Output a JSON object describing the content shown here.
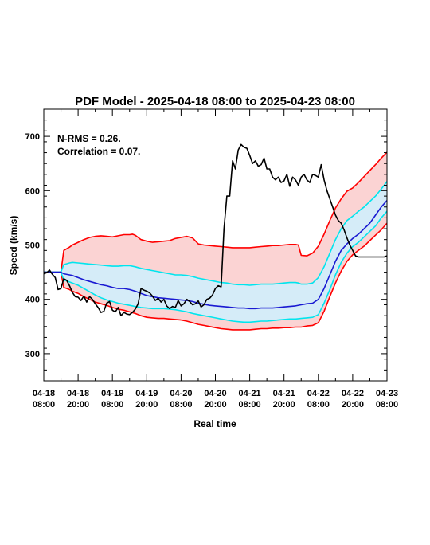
{
  "chart_data": {
    "type": "line",
    "title": "PDF Model - 2025-04-18 08:00 to 2025-04-23 08:00",
    "xlabel": "Real time",
    "ylabel": "Speed (km/s)",
    "ylim": [
      250,
      750
    ],
    "xlim": [
      0,
      120
    ],
    "yticks": [
      300,
      400,
      500,
      600,
      700
    ],
    "xticks": [
      {
        "x": 0,
        "date": "04-18",
        "time": "08:00"
      },
      {
        "x": 12,
        "date": "04-18",
        "time": "20:00"
      },
      {
        "x": 24,
        "date": "04-19",
        "time": "08:00"
      },
      {
        "x": 36,
        "date": "04-19",
        "time": "20:00"
      },
      {
        "x": 48,
        "date": "04-20",
        "time": "08:00"
      },
      {
        "x": 60,
        "date": "04-20",
        "time": "20:00"
      },
      {
        "x": 72,
        "date": "04-21",
        "time": "08:00"
      },
      {
        "x": 84,
        "date": "04-21",
        "time": "20:00"
      },
      {
        "x": 96,
        "date": "04-22",
        "time": "08:00"
      },
      {
        "x": 108,
        "date": "04-22",
        "time": "20:00"
      },
      {
        "x": 120,
        "date": "04-23",
        "time": "08:00"
      }
    ],
    "annotations": [
      "N-RMS = 0.26.",
      "Correlation = 0.07."
    ],
    "grid": false,
    "colors": {
      "outer_band": "#ff0000",
      "outer_fill": "#fbd3d3",
      "inner_band": "#00e5ee",
      "inner_fill": "#d5ecf8",
      "median": "#1a1ad2",
      "observed": "#000000"
    },
    "series": [
      {
        "role": "upper-outer",
        "x": [
          0,
          2,
          5,
          6,
          7,
          9,
          10,
          12,
          14,
          16,
          18,
          20,
          22,
          24,
          26,
          28,
          30,
          31,
          32,
          34,
          36,
          38,
          40,
          42,
          44,
          46,
          48,
          49,
          50,
          52,
          54,
          56,
          58,
          60,
          62,
          64,
          66,
          68,
          70,
          72,
          74,
          76,
          78,
          80,
          82,
          84,
          86,
          88,
          89,
          90,
          92,
          94,
          96,
          98,
          100,
          102,
          104,
          106,
          108,
          110,
          112,
          114,
          116,
          118,
          120
        ],
        "y": [
          450,
          450,
          450,
          450,
          490,
          496,
          500,
          505,
          510,
          514,
          516,
          517,
          516,
          515,
          517,
          519,
          519,
          520,
          518,
          510,
          507,
          505,
          506,
          507,
          508,
          512,
          514,
          515,
          516,
          513,
          502,
          500,
          499,
          498,
          497,
          496,
          495,
          495,
          495,
          495,
          496,
          497,
          498,
          499,
          499,
          500,
          501,
          501,
          500,
          481,
          480,
          485,
          498,
          520,
          545,
          568,
          585,
          599,
          605,
          615,
          626,
          637,
          648,
          660,
          671
        ]
      },
      {
        "role": "upper-inner",
        "x": [
          0,
          2,
          5,
          6,
          7,
          9,
          10,
          12,
          14,
          16,
          18,
          20,
          22,
          24,
          26,
          28,
          30,
          32,
          34,
          36,
          38,
          40,
          42,
          44,
          46,
          48,
          50,
          52,
          54,
          56,
          58,
          60,
          62,
          64,
          66,
          68,
          70,
          72,
          74,
          76,
          78,
          80,
          82,
          84,
          86,
          88,
          89,
          90,
          92,
          94,
          96,
          98,
          100,
          102,
          104,
          106,
          108,
          110,
          112,
          114,
          116,
          118,
          120
        ],
        "y": [
          450,
          450,
          450,
          450,
          464,
          467,
          468,
          467,
          466,
          465,
          464,
          463,
          462,
          461,
          461,
          462,
          462,
          460,
          457,
          455,
          453,
          451,
          449,
          447,
          445,
          445,
          444,
          442,
          439,
          437,
          435,
          433,
          431,
          430,
          428,
          427,
          427,
          426,
          427,
          428,
          428,
          428,
          429,
          430,
          431,
          431,
          430,
          428,
          428,
          430,
          440,
          460,
          485,
          510,
          530,
          545,
          553,
          562,
          570,
          580,
          590,
          603,
          617
        ]
      },
      {
        "role": "median",
        "x": [
          0,
          2,
          5,
          6,
          7,
          9,
          10,
          12,
          14,
          16,
          18,
          20,
          22,
          24,
          26,
          28,
          30,
          32,
          34,
          36,
          38,
          40,
          42,
          44,
          46,
          48,
          50,
          52,
          54,
          56,
          58,
          60,
          62,
          64,
          66,
          68,
          70,
          72,
          74,
          76,
          78,
          80,
          82,
          84,
          86,
          88,
          90,
          92,
          94,
          96,
          98,
          100,
          102,
          104,
          106,
          108,
          110,
          112,
          114,
          116,
          118,
          120
        ],
        "y": [
          450,
          450,
          450,
          450,
          447,
          445,
          444,
          440,
          436,
          433,
          430,
          427,
          425,
          422,
          420,
          420,
          418,
          415,
          411,
          407,
          405,
          403,
          402,
          401,
          400,
          399,
          398,
          396,
          393,
          391,
          389,
          388,
          387,
          386,
          385,
          384,
          384,
          383,
          383,
          384,
          384,
          384,
          385,
          386,
          387,
          388,
          390,
          392,
          393,
          400,
          420,
          445,
          470,
          490,
          502,
          512,
          520,
          530,
          540,
          555,
          570,
          582
        ]
      },
      {
        "role": "lower-inner",
        "x": [
          0,
          2,
          5,
          6,
          7,
          9,
          10,
          12,
          14,
          16,
          18,
          20,
          22,
          24,
          26,
          28,
          30,
          32,
          34,
          36,
          38,
          40,
          42,
          44,
          46,
          48,
          50,
          52,
          54,
          56,
          58,
          60,
          62,
          64,
          66,
          68,
          70,
          72,
          74,
          76,
          78,
          80,
          82,
          84,
          86,
          88,
          90,
          92,
          94,
          96,
          98,
          100,
          102,
          104,
          106,
          108,
          110,
          112,
          114,
          116,
          118,
          120
        ],
        "y": [
          450,
          450,
          450,
          450,
          436,
          432,
          430,
          426,
          420,
          414,
          408,
          403,
          399,
          396,
          393,
          391,
          389,
          387,
          385,
          384,
          383,
          383,
          383,
          382,
          381,
          379,
          377,
          374,
          372,
          370,
          368,
          366,
          364,
          362,
          360,
          359,
          358,
          358,
          359,
          360,
          360,
          361,
          362,
          363,
          364,
          364,
          365,
          366,
          367,
          372,
          393,
          418,
          445,
          468,
          485,
          497,
          505,
          515,
          525,
          535,
          550,
          562
        ]
      },
      {
        "role": "lower-outer",
        "x": [
          0,
          2,
          5,
          6,
          7,
          9,
          10,
          12,
          14,
          16,
          18,
          20,
          22,
          24,
          26,
          28,
          30,
          32,
          34,
          36,
          38,
          40,
          42,
          44,
          46,
          48,
          50,
          52,
          54,
          56,
          58,
          60,
          62,
          64,
          66,
          68,
          70,
          72,
          74,
          76,
          78,
          80,
          82,
          84,
          86,
          88,
          90,
          92,
          94,
          96,
          98,
          100,
          102,
          104,
          106,
          108,
          110,
          112,
          114,
          116,
          118,
          120
        ],
        "y": [
          450,
          450,
          450,
          450,
          422,
          418,
          415,
          411,
          405,
          400,
          395,
          392,
          389,
          385,
          382,
          380,
          377,
          374,
          370,
          367,
          366,
          365,
          365,
          364,
          363,
          362,
          360,
          357,
          354,
          352,
          350,
          348,
          346,
          345,
          344,
          344,
          344,
          344,
          345,
          346,
          346,
          347,
          347,
          348,
          348,
          349,
          349,
          351,
          352,
          357,
          378,
          405,
          430,
          452,
          470,
          482,
          490,
          498,
          508,
          518,
          528,
          540
        ]
      },
      {
        "role": "observed",
        "x": [
          0,
          1,
          2,
          3,
          4,
          5,
          6,
          7,
          8,
          9,
          10,
          11,
          12,
          13,
          14,
          15,
          16,
          17,
          18,
          19,
          20,
          21,
          22,
          23,
          24,
          25,
          26,
          27,
          28,
          29,
          30,
          31,
          32,
          33,
          34,
          35,
          36,
          37,
          38,
          39,
          40,
          41,
          42,
          43,
          44,
          45,
          46,
          47,
          48,
          49,
          50,
          51,
          52,
          53,
          54,
          55,
          56,
          57,
          58,
          59,
          60,
          61,
          62,
          63,
          64,
          65,
          66,
          67,
          68,
          69,
          70,
          71,
          72,
          73,
          74,
          75,
          76,
          77,
          78,
          79,
          80,
          81,
          82,
          83,
          84,
          85,
          86,
          87,
          88,
          89,
          90,
          91,
          92,
          93,
          94,
          95,
          96,
          97,
          98,
          99,
          100,
          101,
          102,
          103,
          104,
          105,
          106,
          107,
          108,
          109,
          110,
          111,
          112,
          113,
          114,
          115,
          116,
          117,
          118,
          119,
          120
        ],
        "y": [
          447,
          449,
          454,
          446,
          440,
          418,
          420,
          438,
          435,
          425,
          413,
          405,
          404,
          398,
          406,
          395,
          405,
          400,
          392,
          385,
          376,
          378,
          393,
          396,
          380,
          377,
          385,
          370,
          376,
          373,
          372,
          376,
          382,
          392,
          420,
          417,
          415,
          412,
          406,
          398,
          402,
          395,
          400,
          388,
          383,
          387,
          385,
          398,
          388,
          392,
          400,
          396,
          390,
          392,
          397,
          386,
          390,
          400,
          402,
          408,
          420,
          425,
          423,
          530,
          590,
          590,
          655,
          640,
          675,
          685,
          680,
          678,
          665,
          650,
          655,
          645,
          648,
          660,
          640,
          640,
          625,
          620,
          625,
          615,
          618,
          630,
          608,
          625,
          620,
          610,
          625,
          630,
          620,
          615,
          630,
          628,
          625,
          648,
          620,
          600,
          585,
          570,
          555,
          545,
          540,
          528,
          513,
          500,
          490,
          480,
          478,
          478,
          478,
          478,
          478,
          478,
          478,
          478,
          478,
          478,
          480
        ]
      }
    ]
  }
}
